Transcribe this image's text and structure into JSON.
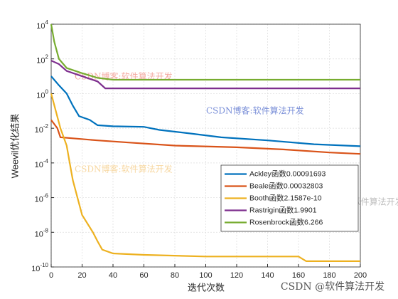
{
  "chart_data": {
    "type": "line",
    "xlabel": "迭代次数",
    "ylabel": "Weevil优化结果",
    "yscale": "log",
    "grid": true,
    "legend": "lower right",
    "xlim": [
      0,
      200
    ],
    "xticks": [
      0,
      20,
      40,
      60,
      80,
      100,
      120,
      140,
      160,
      180,
      200
    ],
    "ylim": [
      1e-10,
      10000
    ],
    "yticks": [
      {
        "value": 1e-10,
        "label": "10^-10"
      },
      {
        "value": 1e-08,
        "label": "10^-8"
      },
      {
        "value": 1e-06,
        "label": "10^-6"
      },
      {
        "value": 0.0001,
        "label": "10^-4"
      },
      {
        "value": 0.01,
        "label": "10^-2"
      },
      {
        "value": 1,
        "label": "10^0"
      },
      {
        "value": 100,
        "label": "10^2"
      },
      {
        "value": 10000,
        "label": "10^4"
      }
    ],
    "series": [
      {
        "name": "Ackley函数0.00091693",
        "color": "#0072bd",
        "x": [
          0,
          5,
          10,
          14,
          18,
          25,
          30,
          40,
          60,
          70,
          90,
          110,
          140,
          170,
          200
        ],
        "values": [
          10,
          3,
          1,
          0.2,
          0.05,
          0.03,
          0.015,
          0.013,
          0.012,
          0.008,
          0.005,
          0.003,
          0.002,
          0.0012,
          0.00092
        ]
      },
      {
        "name": "Beale函数0.00032803",
        "color": "#d95319",
        "x": [
          0,
          4,
          6,
          30,
          50,
          80,
          120,
          150,
          180,
          200
        ],
        "values": [
          0.03,
          0.01,
          0.003,
          0.002,
          0.0015,
          0.001,
          0.0008,
          0.0006,
          0.0004,
          0.00033
        ]
      },
      {
        "name": "Booth函数2.1587e-10",
        "color": "#edb120",
        "x": [
          0,
          3,
          6,
          10,
          12,
          14,
          17,
          20,
          27,
          30,
          33,
          40,
          60,
          100,
          160,
          165,
          200
        ],
        "values": [
          1,
          0.1,
          0.01,
          0.001,
          0.0001,
          1e-05,
          1e-06,
          1e-07,
          1e-08,
          3e-09,
          1e-09,
          6e-10,
          5e-10,
          4e-10,
          4e-10,
          2.16e-10,
          2.16e-10
        ]
      },
      {
        "name": "Rastrigin函数1.9901",
        "color": "#7e2f8e",
        "x": [
          0,
          5,
          10,
          20,
          30,
          35,
          200
        ],
        "values": [
          80,
          50,
          20,
          10,
          5,
          2,
          1.99
        ]
      },
      {
        "name": "Rosenbrock函数6.266",
        "color": "#77ac30",
        "x": [
          0,
          2,
          5,
          10,
          20,
          30,
          40,
          200
        ],
        "values": [
          10000,
          1000,
          100,
          30,
          15,
          8,
          6.3,
          6.266
        ]
      }
    ],
    "annotations": [
      "CSDN博客:软件算法开发",
      "CSDN博客:软件算法开发",
      "CSDN博客:软件算法开发",
      "CSDN博客:软件算法开发",
      "CSDN @软件算法开发"
    ]
  }
}
